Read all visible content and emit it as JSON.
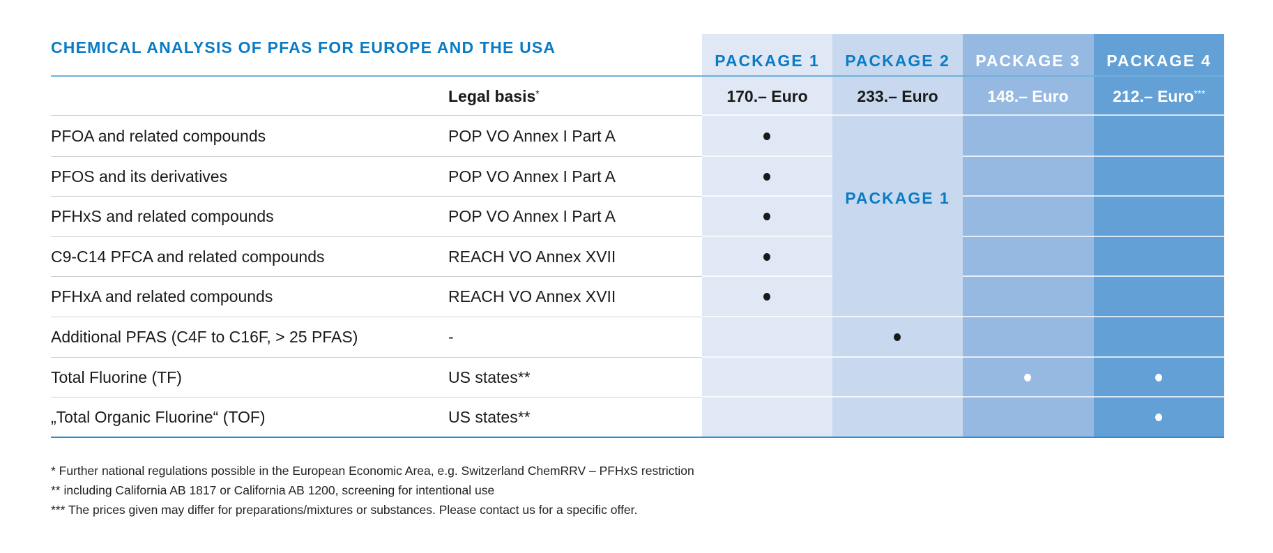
{
  "title": "CHEMICAL ANALYSIS OF PFAS FOR EUROPE AND THE USA",
  "legal_basis_header": "Legal basis",
  "legal_basis_mark": "*",
  "packages": [
    {
      "name": "PACKAGE 1",
      "price": "170.– Euro",
      "price_mark": "",
      "color": "#e1e8f5"
    },
    {
      "name": "PACKAGE 2",
      "price": "233.– Euro",
      "price_mark": "",
      "color": "#c8d9ef"
    },
    {
      "name": "PACKAGE 3",
      "price": "148.– Euro",
      "price_mark": "",
      "color": "#96b9e2"
    },
    {
      "name": "PACKAGE 4",
      "price": "212.– Euro",
      "price_mark": "***",
      "color": "#62a0d6"
    }
  ],
  "package2_includes": "PACKAGE 1",
  "rows": [
    {
      "substance": "PFOA and related compounds",
      "legal": "POP VO Annex I Part A",
      "included": [
        1,
        0,
        0,
        0
      ]
    },
    {
      "substance": "PFOS and its derivatives",
      "legal": "POP VO Annex I Part A",
      "included": [
        1,
        0,
        0,
        0
      ]
    },
    {
      "substance": "PFHxS and related compounds",
      "legal": "POP VO Annex I Part A",
      "included": [
        1,
        0,
        0,
        0
      ]
    },
    {
      "substance": "C9-C14 PFCA and related compounds",
      "legal": "REACH VO Annex XVII",
      "included": [
        1,
        0,
        0,
        0
      ]
    },
    {
      "substance": "PFHxA and related compounds",
      "legal": "REACH VO Annex XVII",
      "included": [
        1,
        0,
        0,
        0
      ]
    },
    {
      "substance": "Additional PFAS (C4F to C16F, > 25 PFAS)",
      "legal": "-",
      "included": [
        0,
        1,
        0,
        0
      ]
    },
    {
      "substance": "Total Fluorine (TF)",
      "legal": "US states**",
      "included": [
        0,
        0,
        1,
        1
      ]
    },
    {
      "substance": "„Total Organic Fluorine“ (TOF)",
      "legal": "US states**",
      "included": [
        0,
        0,
        0,
        1
      ]
    }
  ],
  "footnotes": [
    "* Further national regulations possible in the European Economic Area, e.g. Switzerland ChemRRV – PFHxS restriction",
    "** including California AB 1817 or California AB 1200, screening for intentional use",
    "*** The prices given may differ for preparations/mixtures or substances. Please contact us for a specific offer."
  ]
}
